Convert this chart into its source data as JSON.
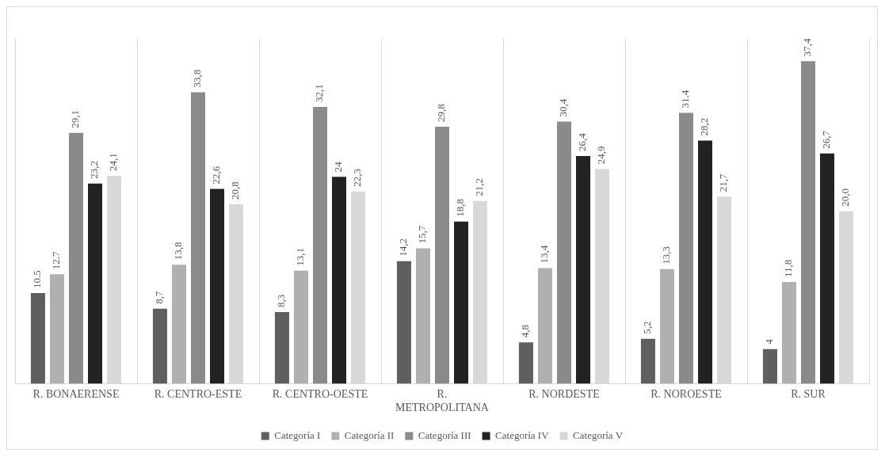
{
  "chart_data": {
    "type": "bar",
    "categories": [
      "R. BONAERENSE",
      "R. CENTRO-ESTE",
      "R. CENTRO-OESTE",
      "R. METROPOLITANA",
      "R. NORDESTE",
      "R. NOROESTE",
      "R. SUR"
    ],
    "series": [
      {
        "name": "Categoría I",
        "color": "#5f5f5f",
        "values": [
          10.5,
          8.7,
          8.3,
          14.2,
          4.8,
          5.2,
          4
        ],
        "value_labels": [
          "10.5",
          "8,7",
          "8,3",
          "14,2",
          "4,8",
          "5,2",
          "4"
        ]
      },
      {
        "name": "Categoría II",
        "color": "#b0b0b0",
        "values": [
          12.7,
          13.8,
          13.1,
          15.7,
          13.4,
          13.3,
          11.8
        ],
        "value_labels": [
          "12.7",
          "13,8",
          "13,1",
          "15,7",
          "13,4",
          "13,3",
          "11,8"
        ]
      },
      {
        "name": "Categoría III",
        "color": "#8a8a8a",
        "values": [
          29.1,
          33.8,
          32.1,
          29.8,
          30.4,
          31.4,
          37.4
        ],
        "value_labels": [
          "29,1",
          "33,8",
          "32,1",
          "29,8",
          "30,4",
          "31.4",
          "37,4"
        ]
      },
      {
        "name": "Categoría IV",
        "color": "#222222",
        "values": [
          23.2,
          22.6,
          24,
          18.8,
          26.4,
          28.2,
          26.7
        ],
        "value_labels": [
          "23,2",
          "22,6",
          "24",
          "18,8",
          "26,4",
          "28,2",
          "26,7"
        ]
      },
      {
        "name": "Categoría V",
        "color": "#d8d8d8",
        "values": [
          24.1,
          20.8,
          22.3,
          21.2,
          24.9,
          21.7,
          20.0
        ],
        "value_labels": [
          "24,1",
          "20,8",
          "22,3",
          "21,2",
          "24,9",
          "21,7",
          "20,0"
        ]
      }
    ],
    "grid": "x",
    "legend": "bottom"
  }
}
